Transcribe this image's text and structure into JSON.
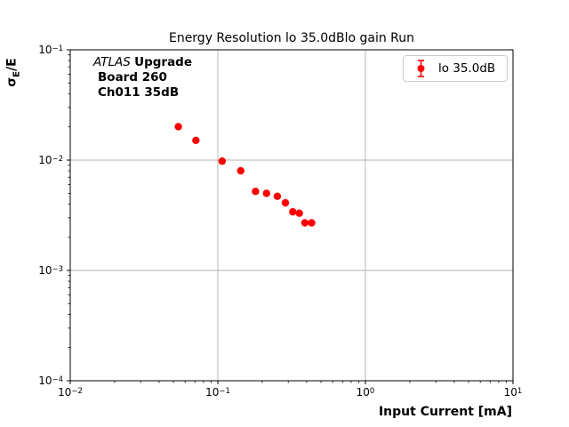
{
  "figure": {
    "title": "Energy Resolution lo 35.0dBlo gain Run",
    "annotation": {
      "line1_italic": "ATLAS",
      "line1_bold": "Upgrade",
      "line2": "Board 260",
      "line3": "Ch011 35dB"
    },
    "legend": {
      "label": "lo 35.0dB",
      "marker_icon": "errorbar-circle-marker",
      "marker_color": "#ff0000"
    },
    "xlabel": "Input Current [mA]",
    "ylabel_parts": {
      "sigma": "σ",
      "sub": "E",
      "rest": "/E"
    }
  },
  "chart_data": {
    "type": "scatter",
    "title": "Energy Resolution lo 35.0dBlo gain Run",
    "xlabel": "Input Current [mA]",
    "ylabel": "sigma_E/E",
    "xscale": "log",
    "yscale": "log",
    "xlim": [
      0.01,
      10
    ],
    "ylim": [
      0.0001,
      0.1
    ],
    "x_tick_exponents": [
      -2,
      -1,
      0,
      1
    ],
    "y_tick_exponents": [
      -1,
      -2,
      -3,
      -4
    ],
    "x_tick_labels": [
      "10⁻²",
      "10⁻¹",
      "10⁰",
      "10¹"
    ],
    "y_tick_labels": [
      "10⁻¹",
      "10⁻²",
      "10⁻³",
      "10⁻⁴"
    ],
    "grid": true,
    "legend_position": "upper right",
    "series": [
      {
        "name": "lo 35.0dB",
        "color": "#ff0000",
        "marker": "o",
        "x": [
          0.054,
          0.071,
          0.107,
          0.143,
          0.18,
          0.214,
          0.253,
          0.287,
          0.322,
          0.357,
          0.389,
          0.432
        ],
        "y": [
          0.0201,
          0.0151,
          0.0098,
          0.008,
          0.0052,
          0.005,
          0.0047,
          0.0041,
          0.0034,
          0.0033,
          0.0027,
          0.0027
        ]
      }
    ]
  },
  "colors": {
    "marker": "#ff0000",
    "grid": "#b0b0b0",
    "spine": "#000000",
    "legend_border": "#cccccc",
    "background": "#ffffff"
  }
}
